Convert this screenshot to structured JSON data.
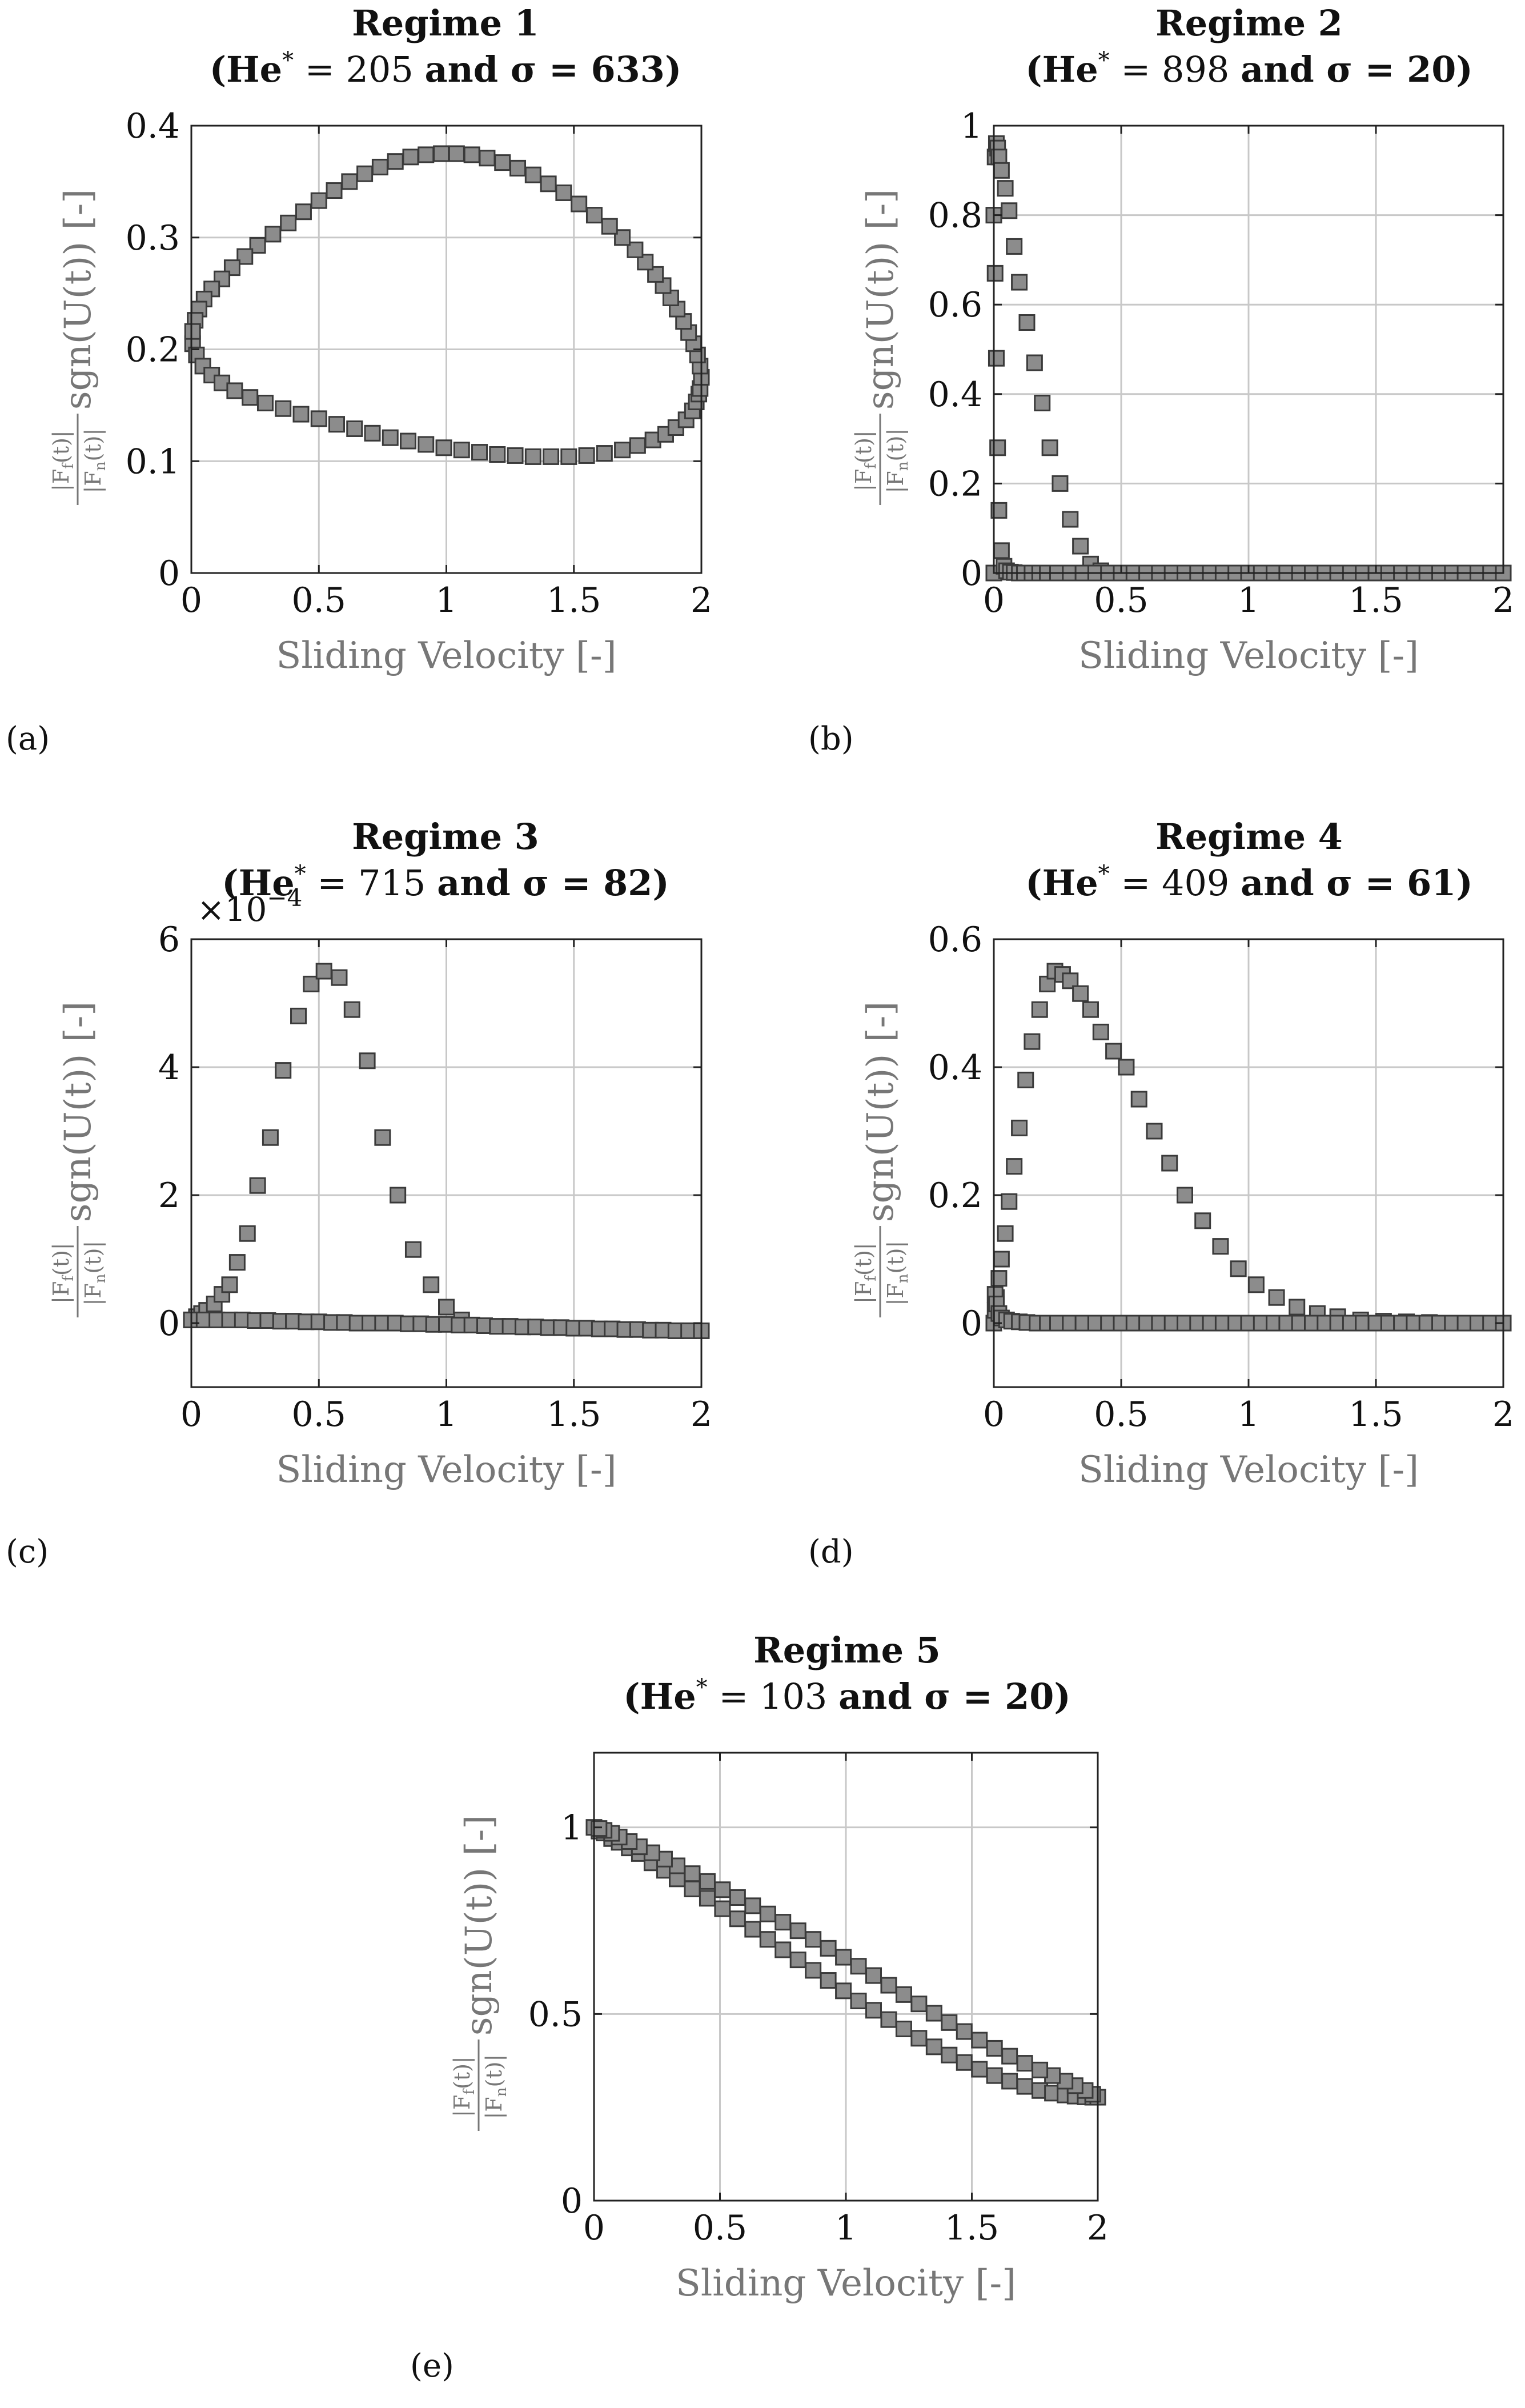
{
  "figure": {
    "marker_fill": "#8c8c8c",
    "marker_stroke": "#3a3a3a",
    "grid_color": "#c8c8c8",
    "axis_color": "#222222",
    "label_color": "#777777"
  },
  "chart_data": [
    {
      "id": "a",
      "type": "scatter",
      "panel_label": "(a)",
      "title": "Regime 1",
      "subtitle_parts": [
        "(He",
        "*",
        " = 205 ",
        "and",
        " σ = 633)"
      ],
      "xlabel": "Sliding Velocity [-]",
      "ylabel_parts": [
        "|F",
        "f",
        "(t)|",
        "|F",
        "n",
        "(t)|",
        "sgn(U(t)) [-]"
      ],
      "xlim": [
        0,
        2
      ],
      "ylim": [
        0,
        0.4
      ],
      "xticks": [
        0,
        0.5,
        1,
        1.5,
        2
      ],
      "xtick_labels": [
        "0",
        "0.5",
        "1",
        "1.5",
        "2"
      ],
      "yticks": [
        0,
        0.1,
        0.2,
        0.3,
        0.4
      ],
      "ytick_labels": [
        "0",
        "0.1",
        "0.2",
        "0.3",
        "0.4"
      ],
      "grid": true,
      "series": [
        {
          "name": "Regime 1",
          "x": [
            0.005,
            0.02,
            0.045,
            0.08,
            0.12,
            0.17,
            0.23,
            0.29,
            0.36,
            0.43,
            0.5,
            0.57,
            0.64,
            0.71,
            0.78,
            0.85,
            0.92,
            0.99,
            1.06,
            1.13,
            1.2,
            1.27,
            1.34,
            1.41,
            1.48,
            1.55,
            1.62,
            1.69,
            1.75,
            1.81,
            1.86,
            1.9,
            1.94,
            1.965,
            1.98,
            1.99,
            1.995,
            2.0,
            1.995,
            1.985,
            1.97,
            1.95,
            1.93,
            1.905,
            1.88,
            1.85,
            1.82,
            1.78,
            1.74,
            1.69,
            1.64,
            1.58,
            1.52,
            1.46,
            1.4,
            1.34,
            1.28,
            1.22,
            1.16,
            1.1,
            1.04,
            0.98,
            0.92,
            0.86,
            0.8,
            0.74,
            0.68,
            0.62,
            0.56,
            0.5,
            0.44,
            0.38,
            0.32,
            0.26,
            0.21,
            0.16,
            0.12,
            0.08,
            0.05,
            0.03,
            0.015,
            0.005
          ],
          "y": [
            0.205,
            0.195,
            0.185,
            0.177,
            0.17,
            0.163,
            0.157,
            0.152,
            0.147,
            0.142,
            0.138,
            0.133,
            0.129,
            0.125,
            0.121,
            0.118,
            0.115,
            0.112,
            0.11,
            0.108,
            0.106,
            0.105,
            0.104,
            0.104,
            0.104,
            0.105,
            0.107,
            0.11,
            0.114,
            0.119,
            0.124,
            0.13,
            0.137,
            0.145,
            0.153,
            0.16,
            0.165,
            0.175,
            0.185,
            0.195,
            0.205,
            0.215,
            0.225,
            0.236,
            0.246,
            0.257,
            0.267,
            0.278,
            0.289,
            0.3,
            0.31,
            0.32,
            0.33,
            0.34,
            0.348,
            0.356,
            0.362,
            0.367,
            0.371,
            0.374,
            0.375,
            0.375,
            0.374,
            0.372,
            0.368,
            0.363,
            0.357,
            0.35,
            0.342,
            0.333,
            0.323,
            0.313,
            0.303,
            0.293,
            0.283,
            0.273,
            0.263,
            0.254,
            0.245,
            0.236,
            0.226,
            0.216
          ]
        }
      ]
    },
    {
      "id": "b",
      "type": "scatter",
      "panel_label": "(b)",
      "title": "Regime 2",
      "subtitle_parts": [
        "(He",
        "*",
        " = 898 ",
        "and",
        " σ = 20)"
      ],
      "xlabel": "Sliding Velocity [-]",
      "ylabel_parts": [
        "|F",
        "f",
        "(t)|",
        "|F",
        "n",
        "(t)|",
        "sgn(U(t)) [-]"
      ],
      "xlim": [
        0,
        2
      ],
      "ylim": [
        0,
        1
      ],
      "xticks": [
        0,
        0.5,
        1,
        1.5,
        2
      ],
      "xtick_labels": [
        "0",
        "0.5",
        "1",
        "1.5",
        "2"
      ],
      "yticks": [
        0,
        0.2,
        0.4,
        0.6,
        0.8,
        1
      ],
      "ytick_labels": [
        "0",
        "0.2",
        "0.4",
        "0.6",
        "0.8",
        "1"
      ],
      "grid": true,
      "series": [
        {
          "name": "Regime 2",
          "x": [
            0.0,
            0.005,
            0.01,
            0.015,
            0.02,
            0.03,
            0.045,
            0.06,
            0.08,
            0.1,
            0.13,
            0.16,
            0.19,
            0.22,
            0.26,
            0.3,
            0.34,
            0.38,
            0.42,
            0.46,
            0.5,
            0.0,
            0.005,
            0.01,
            0.015,
            0.02,
            0.03,
            0.04,
            0.05,
            0.065,
            0.08,
            0.1,
            0.12,
            0.15,
            0.18,
            0.21,
            0.25,
            0.3,
            0.35,
            0.4,
            0.45,
            0.5,
            0.55,
            0.6,
            0.65,
            0.7,
            0.75,
            0.8,
            0.85,
            0.9,
            0.95,
            1.0,
            1.05,
            1.1,
            1.15,
            1.2,
            1.25,
            1.3,
            1.35,
            1.4,
            1.45,
            1.5,
            1.55,
            1.6,
            1.65,
            1.7,
            1.75,
            1.8,
            1.85,
            1.9,
            1.95,
            2.0
          ],
          "y": [
            0.8,
            0.93,
            0.96,
            0.95,
            0.93,
            0.9,
            0.86,
            0.81,
            0.73,
            0.65,
            0.56,
            0.47,
            0.38,
            0.28,
            0.2,
            0.12,
            0.06,
            0.02,
            0.005,
            0.0,
            0.0,
            0.0,
            0.67,
            0.48,
            0.28,
            0.14,
            0.05,
            0.015,
            0.005,
            0.002,
            0.001,
            0.0,
            0.0,
            0.0,
            0.0,
            0.0,
            0.0,
            0.0,
            0.0,
            0.0,
            0.0,
            0.0,
            0.0,
            0.0,
            0.0,
            0.0,
            0.0,
            0.0,
            0.0,
            0.0,
            0.0,
            0.0,
            0.0,
            0.0,
            0.0,
            0.0,
            0.0,
            0.0,
            0.0,
            0.0,
            0.0,
            0.0,
            0.0,
            0.0,
            0.0,
            0.0,
            0.0,
            0.0,
            0.0,
            0.0,
            0.0,
            0.0
          ]
        }
      ]
    },
    {
      "id": "c",
      "type": "scatter",
      "panel_label": "(c)",
      "title": "Regime 3",
      "subtitle_parts": [
        "(He",
        "*",
        " = 715 ",
        "and",
        " σ = 82)"
      ],
      "exponent_label": [
        "×10",
        "−4"
      ],
      "xlabel": "Sliding Velocity [-]",
      "ylabel_parts": [
        "|F",
        "f",
        "(t)|",
        "|F",
        "n",
        "(t)|",
        "sgn(U(t)) [-]"
      ],
      "xlim": [
        0,
        2
      ],
      "ylim": [
        -1,
        6
      ],
      "xticks": [
        0,
        0.5,
        1,
        1.5,
        2
      ],
      "xtick_labels": [
        "0",
        "0.5",
        "1",
        "1.5",
        "2"
      ],
      "yticks": [
        0,
        2,
        4,
        6
      ],
      "ytick_labels": [
        "0",
        "2",
        "4",
        "6"
      ],
      "grid": true,
      "series": [
        {
          "name": "Regime 3",
          "x": [
            0.0,
            0.02,
            0.04,
            0.06,
            0.09,
            0.12,
            0.15,
            0.18,
            0.22,
            0.26,
            0.31,
            0.36,
            0.42,
            0.47,
            0.52,
            0.58,
            0.63,
            0.69,
            0.75,
            0.81,
            0.87,
            0.94,
            1.0,
            1.06,
            0.0,
            0.05,
            0.1,
            0.15,
            0.2,
            0.25,
            0.3,
            0.35,
            0.4,
            0.45,
            0.5,
            0.55,
            0.6,
            0.65,
            0.7,
            0.75,
            0.8,
            0.85,
            0.9,
            0.95,
            1.0,
            1.05,
            1.1,
            1.15,
            1.2,
            1.25,
            1.3,
            1.35,
            1.4,
            1.45,
            1.5,
            1.55,
            1.6,
            1.65,
            1.7,
            1.75,
            1.8,
            1.85,
            1.9,
            1.95,
            2.0
          ],
          "y": [
            0.05,
            0.1,
            0.15,
            0.2,
            0.3,
            0.45,
            0.6,
            0.95,
            1.4,
            2.15,
            2.9,
            3.95,
            4.8,
            5.3,
            5.5,
            5.4,
            4.9,
            4.1,
            2.9,
            2.0,
            1.15,
            0.6,
            0.25,
            0.05,
            0.05,
            0.05,
            0.05,
            0.05,
            0.05,
            0.04,
            0.04,
            0.03,
            0.03,
            0.02,
            0.02,
            0.01,
            0.01,
            0.0,
            0.0,
            0.0,
            0.0,
            -0.01,
            -0.01,
            -0.02,
            -0.02,
            -0.03,
            -0.03,
            -0.04,
            -0.05,
            -0.05,
            -0.06,
            -0.06,
            -0.07,
            -0.07,
            -0.08,
            -0.08,
            -0.09,
            -0.09,
            -0.1,
            -0.1,
            -0.11,
            -0.11,
            -0.12,
            -0.12,
            -0.12
          ]
        }
      ]
    },
    {
      "id": "d",
      "type": "scatter",
      "panel_label": "(d)",
      "title": "Regime 4",
      "subtitle_parts": [
        "(He",
        "*",
        " = 409 ",
        "and",
        " σ = 61)"
      ],
      "xlabel": "Sliding Velocity [-]",
      "ylabel_parts": [
        "|F",
        "f",
        "(t)|",
        "|F",
        "n",
        "(t)|",
        "sgn(U(t)) [-]"
      ],
      "xlim": [
        0,
        2
      ],
      "ylim": [
        -0.1,
        0.6
      ],
      "xticks": [
        0,
        0.5,
        1,
        1.5,
        2
      ],
      "xtick_labels": [
        "0",
        "0.5",
        "1",
        "1.5",
        "2"
      ],
      "yticks": [
        0,
        0.2,
        0.4,
        0.6
      ],
      "ytick_labels": [
        "0",
        "0.2",
        "0.4",
        "0.6"
      ],
      "grid": true,
      "series": [
        {
          "name": "Regime 4",
          "x": [
            0.0,
            0.005,
            0.01,
            0.02,
            0.03,
            0.045,
            0.06,
            0.08,
            0.1,
            0.125,
            0.15,
            0.18,
            0.21,
            0.24,
            0.27,
            0.3,
            0.34,
            0.38,
            0.42,
            0.47,
            0.52,
            0.57,
            0.63,
            0.69,
            0.75,
            0.82,
            0.89,
            0.96,
            1.03,
            1.11,
            1.19,
            1.27,
            1.35,
            1.44,
            1.53,
            1.62,
            1.71,
            1.8,
            1.9,
            2.0,
            0.005,
            0.01,
            0.02,
            0.03,
            0.05,
            0.07,
            0.1,
            0.13,
            0.17,
            0.21,
            0.25,
            0.3,
            0.35,
            0.4,
            0.45,
            0.5,
            0.55,
            0.6,
            0.65,
            0.7,
            0.75,
            0.8,
            0.85,
            0.9,
            0.95,
            1.0,
            1.05,
            1.1,
            1.15,
            1.2,
            1.25,
            1.3,
            1.35,
            1.4,
            1.45,
            1.5,
            1.55,
            1.6,
            1.65,
            1.7,
            1.75,
            1.8,
            1.85,
            1.9,
            1.95,
            2.0
          ],
          "y": [
            0.0,
            0.02,
            0.04,
            0.07,
            0.1,
            0.14,
            0.19,
            0.245,
            0.305,
            0.38,
            0.44,
            0.49,
            0.53,
            0.55,
            0.545,
            0.535,
            0.515,
            0.49,
            0.455,
            0.425,
            0.4,
            0.35,
            0.3,
            0.25,
            0.2,
            0.16,
            0.12,
            0.085,
            0.06,
            0.04,
            0.025,
            0.015,
            0.01,
            0.005,
            0.003,
            0.002,
            0.001,
            0.0,
            0.0,
            0.0,
            0.045,
            0.03,
            0.015,
            0.008,
            0.005,
            0.003,
            0.002,
            0.001,
            0.0,
            0.0,
            0.0,
            0.0,
            0.0,
            0.0,
            0.0,
            0.0,
            0.0,
            0.0,
            0.0,
            0.0,
            0.0,
            0.0,
            0.0,
            0.0,
            0.0,
            0.0,
            0.0,
            0.0,
            0.0,
            0.0,
            0.0,
            0.0,
            0.0,
            0.0,
            0.0,
            0.0,
            0.0,
            0.0,
            0.0,
            0.0,
            0.0,
            0.0,
            0.0,
            0.0,
            0.0,
            0.0
          ]
        }
      ]
    },
    {
      "id": "e",
      "type": "scatter",
      "panel_label": "(e)",
      "title": "Regime 5",
      "subtitle_parts": [
        "(He",
        "*",
        " = 103 ",
        "and",
        " σ = 20)"
      ],
      "xlabel": "Sliding Velocity [-]",
      "ylabel_parts": [
        "|F",
        "f",
        "(t)|",
        "|F",
        "n",
        "(t)|",
        "sgn(U(t)) [-]"
      ],
      "xlim": [
        0,
        2
      ],
      "ylim": [
        0,
        1.2
      ],
      "xticks": [
        0,
        0.5,
        1,
        1.5,
        2
      ],
      "xtick_labels": [
        "0",
        "0.5",
        "1",
        "1.5",
        "2"
      ],
      "yticks": [
        0,
        0.5,
        1
      ],
      "ytick_labels": [
        "0",
        "0.5",
        "1"
      ],
      "grid": true,
      "series": [
        {
          "name": "Regime 5",
          "x": [
            0.0,
            0.02,
            0.04,
            0.07,
            0.1,
            0.14,
            0.18,
            0.23,
            0.28,
            0.33,
            0.39,
            0.45,
            0.51,
            0.57,
            0.63,
            0.69,
            0.75,
            0.81,
            0.87,
            0.93,
            0.99,
            1.05,
            1.11,
            1.17,
            1.23,
            1.29,
            1.35,
            1.41,
            1.47,
            1.53,
            1.59,
            1.65,
            1.71,
            1.77,
            1.82,
            1.87,
            1.91,
            1.95,
            1.98,
            2.0,
            1.98,
            1.95,
            1.91,
            1.87,
            1.82,
            1.77,
            1.71,
            1.65,
            1.59,
            1.53,
            1.47,
            1.41,
            1.35,
            1.29,
            1.23,
            1.17,
            1.11,
            1.05,
            0.99,
            0.93,
            0.87,
            0.81,
            0.75,
            0.69,
            0.63,
            0.57,
            0.51,
            0.45,
            0.39,
            0.33,
            0.28,
            0.23,
            0.18,
            0.14,
            0.1,
            0.07,
            0.04,
            0.02
          ],
          "y": [
            1.0,
            0.99,
            0.985,
            0.97,
            0.96,
            0.945,
            0.93,
            0.905,
            0.885,
            0.862,
            0.835,
            0.81,
            0.782,
            0.755,
            0.727,
            0.7,
            0.672,
            0.645,
            0.617,
            0.59,
            0.562,
            0.535,
            0.51,
            0.485,
            0.46,
            0.435,
            0.412,
            0.39,
            0.37,
            0.352,
            0.335,
            0.32,
            0.306,
            0.295,
            0.288,
            0.283,
            0.28,
            0.278,
            0.277,
            0.277,
            0.285,
            0.295,
            0.308,
            0.32,
            0.335,
            0.35,
            0.368,
            0.387,
            0.408,
            0.43,
            0.453,
            0.477,
            0.502,
            0.527,
            0.552,
            0.577,
            0.603,
            0.628,
            0.652,
            0.676,
            0.7,
            0.723,
            0.746,
            0.768,
            0.79,
            0.812,
            0.833,
            0.855,
            0.876,
            0.897,
            0.915,
            0.932,
            0.948,
            0.962,
            0.974,
            0.984,
            0.992,
            0.997
          ]
        }
      ]
    }
  ]
}
